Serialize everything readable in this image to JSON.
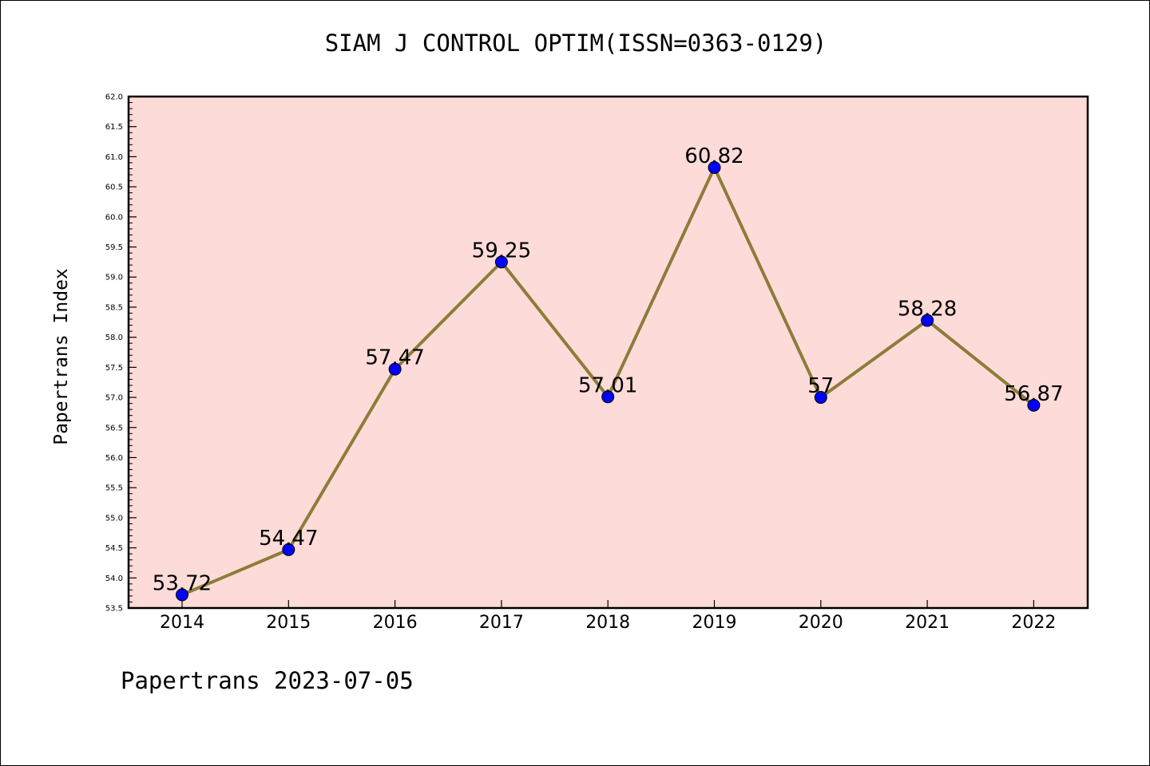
{
  "chart_data": {
    "type": "line",
    "title": "SIAM J CONTROL OPTIM(ISSN=0363-0129)",
    "ylabel": "Papertrans Index",
    "xlabel": "",
    "x": [
      "2014",
      "2015",
      "2016",
      "2017",
      "2018",
      "2019",
      "2020",
      "2021",
      "2022"
    ],
    "series": [
      {
        "values": [
          53.72,
          54.47,
          57.47,
          59.25,
          57.01,
          60.82,
          57.0,
          58.28,
          56.87
        ],
        "data_labels": [
          "53.72",
          "54.47",
          "57.47",
          "59.25",
          "57.01",
          "60.82",
          "57",
          "58.28",
          "56.87"
        ]
      }
    ],
    "ylim": [
      53.5,
      62.0
    ],
    "ytick_step": 0.5,
    "yticks": [
      "53.5",
      "54.0",
      "54.5",
      "55.0",
      "55.5",
      "56.0",
      "56.5",
      "57.0",
      "57.5",
      "58.0",
      "58.5",
      "59.0",
      "59.5",
      "60.0",
      "60.5",
      "61.0",
      "61.5",
      "62.0"
    ],
    "grid": false,
    "colors": {
      "plot_background": "#fddbd8",
      "line": "#8b7d3a",
      "marker": "#0000ff"
    }
  },
  "footer": {
    "text": "Papertrans 2023-07-05"
  }
}
